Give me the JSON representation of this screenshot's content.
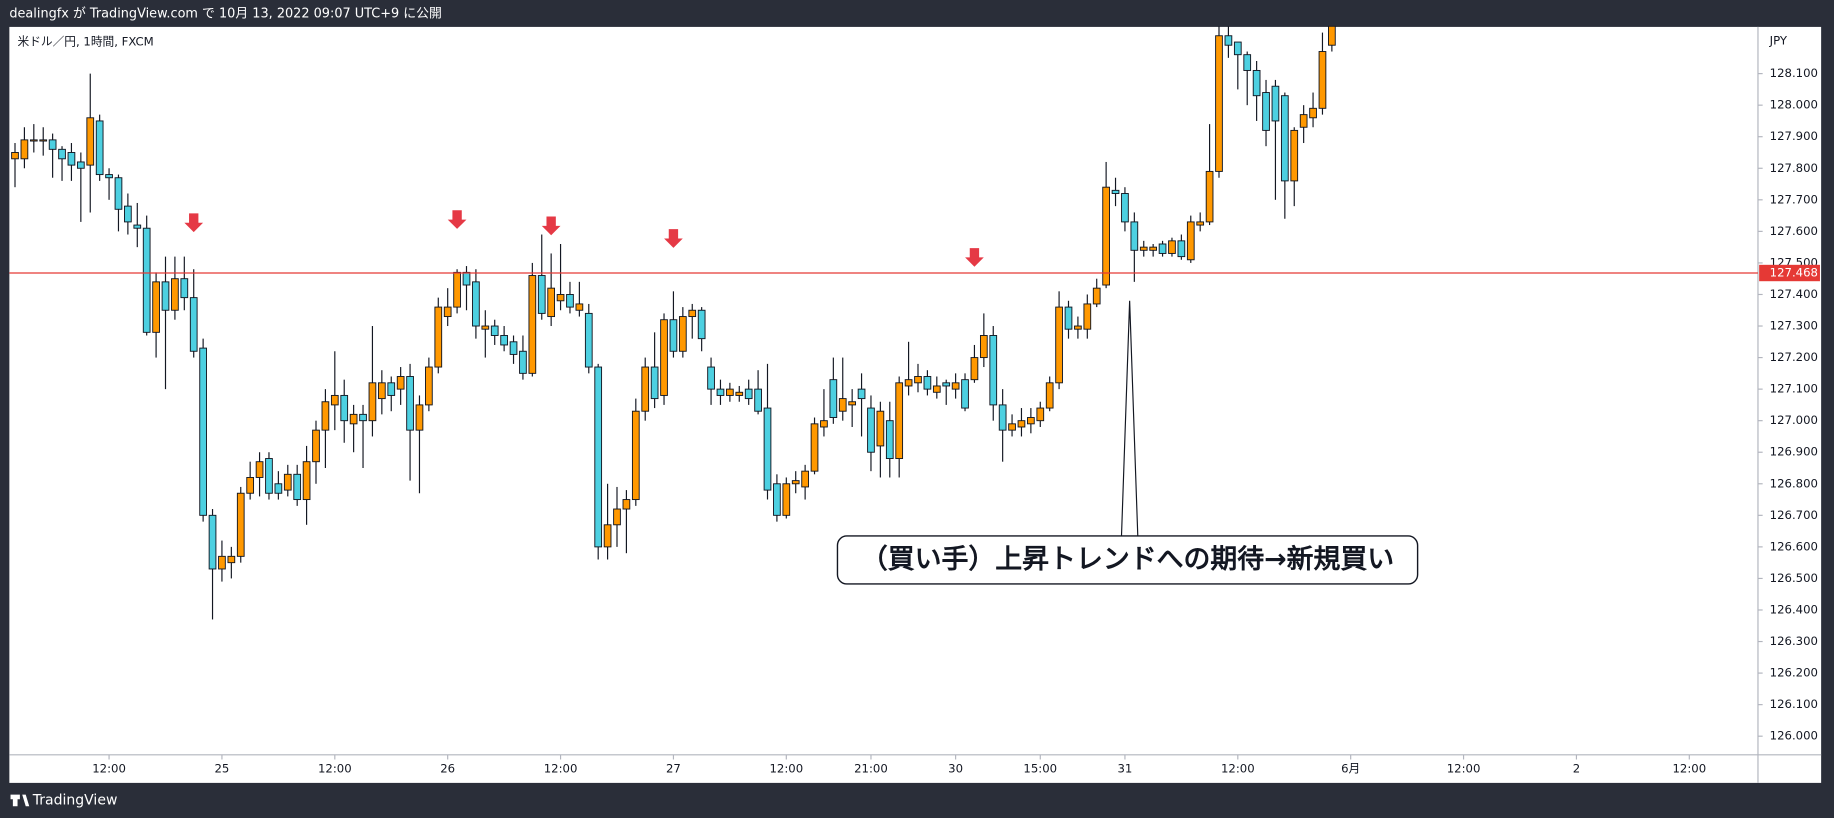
{
  "chart_data": {
    "type": "candlestick",
    "header": "dealingfx が TradingView.com で 10月 13, 2022 09:07 UTC+9 に公開",
    "symbol": "米ドル／円, 1時間, FXCM",
    "currency": "JPY",
    "footer": "TradingView",
    "annotation": "（買い手）上昇トレンドへの期待→新規買い",
    "callout": {
      "x": 118.5,
      "y": 127.38
    },
    "up_color": "#ff9800",
    "down_color": "#4dd0e1",
    "level": 127.468,
    "level_color": "#e53935",
    "arrow_color": "#e53945",
    "arrows": [
      {
        "x": 19,
        "y": 127.62
      },
      {
        "x": 47,
        "y": 127.63
      },
      {
        "x": 57,
        "y": 127.61
      },
      {
        "x": 70,
        "y": 127.57
      },
      {
        "x": 102,
        "y": 127.51
      }
    ],
    "open": [
      127.83,
      127.83,
      127.89,
      127.89,
      127.89,
      127.86,
      127.85,
      127.82,
      127.81,
      127.95,
      127.78,
      127.77,
      127.68,
      127.62,
      127.61,
      127.28,
      127.44,
      127.35,
      127.45,
      127.39,
      127.23,
      126.7,
      126.53,
      126.55,
      126.57,
      126.77,
      126.82,
      126.88,
      126.8,
      126.78,
      126.83,
      126.75,
      126.87,
      126.97,
      127.05,
      127.08,
      126.99,
      127.02,
      127.0,
      127.07,
      127.12,
      127.1,
      127.14,
      126.97,
      127.05,
      127.17,
      127.33,
      127.36,
      127.47,
      127.44,
      127.29,
      127.3,
      127.27,
      127.25,
      127.22,
      127.15,
      127.46,
      127.33,
      127.38,
      127.4,
      127.35,
      127.34,
      127.17,
      126.6,
      126.67,
      126.72,
      126.75,
      127.03,
      127.17,
      127.08,
      127.32,
      127.22,
      127.33,
      127.35,
      127.17,
      127.1,
      127.08,
      127.08,
      127.1,
      127.1,
      127.04,
      126.8,
      126.7,
      126.8,
      126.79,
      126.84,
      126.98,
      127.13,
      127.03,
      127.05,
      127.1,
      127.04,
      126.92,
      127.0,
      126.88,
      127.11,
      127.12,
      127.14,
      127.09,
      127.12,
      127.1,
      127.13,
      127.13,
      127.2,
      127.27,
      127.05,
      126.97,
      126.98,
      126.99,
      127.0,
      127.04,
      127.12,
      127.36,
      127.29,
      127.29,
      127.37,
      127.43,
      127.73,
      127.72,
      127.63,
      127.54,
      127.54,
      127.56,
      127.53,
      127.57,
      127.51,
      127.62,
      127.63,
      127.79,
      128.22,
      128.2,
      128.16,
      128.11,
      128.04,
      128.06,
      128.03,
      127.76,
      127.93,
      127.96,
      127.99,
      128.19
    ],
    "high": [
      127.88,
      127.93,
      127.94,
      127.93,
      127.91,
      127.87,
      127.88,
      127.85,
      128.1,
      127.97,
      127.8,
      127.78,
      127.72,
      127.69,
      127.65,
      127.47,
      127.52,
      127.52,
      127.52,
      127.48,
      127.26,
      126.72,
      126.62,
      126.6,
      126.79,
      126.87,
      126.9,
      126.9,
      126.84,
      126.86,
      126.86,
      126.92,
      127.0,
      127.1,
      127.22,
      127.13,
      127.05,
      127.05,
      127.3,
      127.16,
      127.14,
      127.17,
      127.18,
      127.08,
      127.2,
      127.39,
      127.42,
      127.48,
      127.49,
      127.48,
      127.35,
      127.32,
      127.3,
      127.27,
      127.27,
      127.5,
      127.59,
      127.53,
      127.56,
      127.44,
      127.44,
      127.37,
      127.18,
      126.8,
      126.79,
      126.78,
      127.07,
      127.2,
      127.28,
      127.34,
      127.41,
      127.36,
      127.37,
      127.36,
      127.2,
      127.13,
      127.12,
      127.11,
      127.13,
      127.16,
      127.18,
      126.83,
      126.82,
      126.84,
      126.86,
      127.01,
      127.1,
      127.2,
      127.2,
      127.1,
      127.15,
      127.08,
      127.06,
      127.06,
      127.14,
      127.25,
      127.18,
      127.16,
      127.14,
      127.13,
      127.15,
      127.15,
      127.24,
      127.34,
      127.3,
      127.1,
      127.02,
      127.04,
      127.04,
      127.06,
      127.14,
      127.41,
      127.38,
      127.33,
      127.4,
      127.45,
      127.82,
      127.77,
      127.74,
      127.66,
      127.57,
      127.56,
      127.57,
      127.58,
      127.59,
      127.65,
      127.66,
      127.94,
      128.25,
      128.25,
      128.2,
      128.17,
      128.14,
      128.08,
      128.08,
      128.04,
      127.93,
      128.0,
      128.04,
      128.23,
      128.25
    ],
    "low": [
      127.74,
      127.8,
      127.85,
      127.84,
      127.77,
      127.76,
      127.76,
      127.63,
      127.66,
      127.76,
      127.7,
      127.6,
      127.59,
      127.55,
      127.27,
      127.2,
      127.1,
      127.32,
      127.35,
      127.2,
      126.68,
      126.37,
      126.49,
      126.5,
      126.55,
      126.75,
      126.76,
      126.75,
      126.75,
      126.76,
      126.73,
      126.67,
      126.8,
      126.85,
      126.97,
      126.93,
      126.9,
      126.85,
      126.95,
      127.02,
      127.03,
      127.05,
      126.81,
      126.77,
      127.03,
      127.15,
      127.3,
      127.34,
      127.35,
      127.26,
      127.2,
      127.24,
      127.22,
      127.18,
      127.13,
      127.14,
      127.32,
      127.3,
      127.35,
      127.34,
      127.33,
      127.15,
      126.56,
      126.56,
      126.6,
      126.58,
      126.73,
      127.0,
      127.04,
      127.05,
      127.2,
      127.2,
      127.26,
      127.22,
      127.05,
      127.05,
      127.06,
      127.06,
      127.05,
      127.02,
      126.75,
      126.68,
      126.69,
      126.77,
      126.75,
      126.83,
      126.95,
      126.99,
      127.0,
      126.98,
      126.95,
      126.84,
      126.82,
      126.82,
      126.82,
      127.08,
      127.09,
      127.08,
      127.07,
      127.05,
      127.07,
      127.03,
      127.12,
      127.17,
      127.0,
      126.87,
      126.95,
      126.95,
      126.96,
      126.98,
      127.03,
      127.1,
      127.26,
      127.26,
      127.26,
      127.36,
      127.42,
      127.68,
      127.6,
      127.44,
      127.52,
      127.52,
      127.52,
      127.52,
      127.51,
      127.5,
      127.6,
      127.62,
      127.77,
      128.15,
      128.05,
      128.0,
      127.95,
      127.87,
      127.7,
      127.64,
      127.68,
      127.88,
      127.93,
      127.97,
      128.17
    ],
    "close": [
      127.85,
      127.89,
      127.89,
      127.89,
      127.86,
      127.83,
      127.81,
      127.8,
      127.96,
      127.78,
      127.77,
      127.67,
      127.63,
      127.61,
      127.28,
      127.44,
      127.35,
      127.45,
      127.39,
      127.22,
      126.7,
      126.53,
      126.57,
      126.57,
      126.77,
      126.82,
      126.87,
      126.77,
      126.77,
      126.83,
      126.75,
      126.87,
      126.97,
      127.06,
      127.08,
      127.0,
      127.02,
      127.0,
      127.12,
      127.12,
      127.08,
      127.14,
      126.97,
      127.05,
      127.17,
      127.36,
      127.36,
      127.47,
      127.43,
      127.3,
      127.3,
      127.27,
      127.24,
      127.21,
      127.15,
      127.46,
      127.34,
      127.42,
      127.4,
      127.36,
      127.37,
      127.17,
      126.6,
      126.67,
      126.72,
      126.75,
      127.03,
      127.17,
      127.07,
      127.32,
      127.22,
      127.33,
      127.35,
      127.26,
      127.1,
      127.08,
      127.1,
      127.09,
      127.07,
      127.03,
      126.78,
      126.7,
      126.8,
      126.81,
      126.84,
      126.99,
      127.0,
      127.01,
      127.07,
      127.06,
      127.07,
      126.9,
      127.03,
      126.88,
      127.12,
      127.13,
      127.14,
      127.1,
      127.11,
      127.11,
      127.12,
      127.04,
      127.2,
      127.27,
      127.05,
      126.97,
      126.99,
      127.0,
      127.01,
      127.04,
      127.12,
      127.36,
      127.29,
      127.3,
      127.37,
      127.42,
      127.74,
      127.72,
      127.63,
      127.54,
      127.55,
      127.55,
      127.53,
      127.57,
      127.52,
      127.63,
      127.63,
      127.79,
      128.22,
      128.19,
      128.16,
      128.11,
      128.03,
      127.92,
      127.95,
      127.76,
      127.92,
      127.97,
      127.99,
      128.17,
      128.25
    ],
    "xlim": [
      -0.6,
      185.3
    ],
    "xticks": [
      {
        "value": 10,
        "label": "12:00"
      },
      {
        "value": 22,
        "label": "25"
      },
      {
        "value": 34,
        "label": "12:00"
      },
      {
        "value": 46,
        "label": "26"
      },
      {
        "value": 58,
        "label": "12:00"
      },
      {
        "value": 70,
        "label": "27"
      },
      {
        "value": 82,
        "label": "12:00"
      },
      {
        "value": 91,
        "label": "21:00"
      },
      {
        "value": 100,
        "label": "30"
      },
      {
        "value": 109,
        "label": "15:00"
      },
      {
        "value": 118,
        "label": "31"
      },
      {
        "value": 130,
        "label": "12:00"
      },
      {
        "value": 142,
        "label": "6月"
      },
      {
        "value": 154,
        "label": "12:00"
      },
      {
        "value": 166,
        "label": "2"
      },
      {
        "value": 178,
        "label": "12:00"
      }
    ],
    "ylim": [
      125.941,
      128.248
    ],
    "yticks": [
      {
        "value": 126,
        "label": "126.000"
      },
      {
        "value": 126.1,
        "label": "126.100"
      },
      {
        "value": 126.2,
        "label": "126.200"
      },
      {
        "value": 126.3,
        "label": "126.300"
      },
      {
        "value": 126.4,
        "label": "126.400"
      },
      {
        "value": 126.5,
        "label": "126.500"
      },
      {
        "value": 126.6,
        "label": "126.600"
      },
      {
        "value": 126.7,
        "label": "126.700"
      },
      {
        "value": 126.8,
        "label": "126.800"
      },
      {
        "value": 126.9,
        "label": "126.900"
      },
      {
        "value": 127,
        "label": "127.000"
      },
      {
        "value": 127.1,
        "label": "127.100"
      },
      {
        "value": 127.2,
        "label": "127.200"
      },
      {
        "value": 127.3,
        "label": "127.300"
      },
      {
        "value": 127.4,
        "label": "127.400"
      },
      {
        "value": 127.5,
        "label": "127.500"
      },
      {
        "value": 127.6,
        "label": "127.600"
      },
      {
        "value": 127.7,
        "label": "127.700"
      },
      {
        "value": 127.8,
        "label": "127.800"
      },
      {
        "value": 127.9,
        "label": "127.900"
      },
      {
        "value": 128,
        "label": "128.000"
      },
      {
        "value": 128.1,
        "label": "128.100"
      }
    ],
    "grid": false
  }
}
